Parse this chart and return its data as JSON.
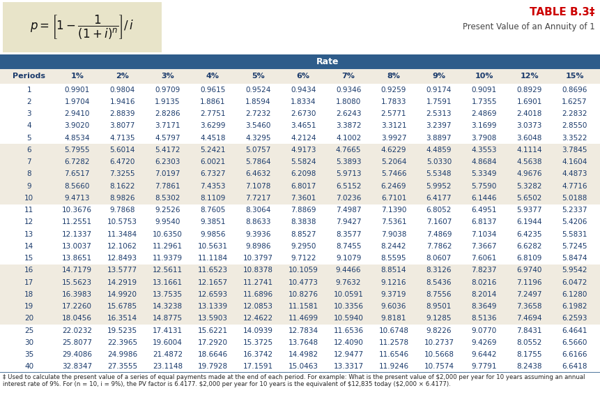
{
  "title": "TABLE B.3‡",
  "subtitle": "Present Value of an Annuity of 1",
  "rate_header": "Rate",
  "col_headers": [
    "Periods",
    "1%",
    "2%",
    "3%",
    "4%",
    "5%",
    "6%",
    "7%",
    "8%",
    "9%",
    "10%",
    "12%",
    "15%"
  ],
  "rows": [
    [
      1,
      0.9901,
      0.9804,
      0.9709,
      0.9615,
      0.9524,
      0.9434,
      0.9346,
      0.9259,
      0.9174,
      0.9091,
      0.8929,
      0.8696
    ],
    [
      2,
      1.9704,
      1.9416,
      1.9135,
      1.8861,
      1.8594,
      1.8334,
      1.808,
      1.7833,
      1.7591,
      1.7355,
      1.6901,
      1.6257
    ],
    [
      3,
      2.941,
      2.8839,
      2.8286,
      2.7751,
      2.7232,
      2.673,
      2.6243,
      2.5771,
      2.5313,
      2.4869,
      2.4018,
      2.2832
    ],
    [
      4,
      3.902,
      3.8077,
      3.7171,
      3.6299,
      3.546,
      3.4651,
      3.3872,
      3.3121,
      3.2397,
      3.1699,
      3.0373,
      2.855
    ],
    [
      5,
      4.8534,
      4.7135,
      4.5797,
      4.4518,
      4.3295,
      4.2124,
      4.1002,
      3.9927,
      3.8897,
      3.7908,
      3.6048,
      3.3522
    ],
    [
      6,
      5.7955,
      5.6014,
      5.4172,
      5.2421,
      5.0757,
      4.9173,
      4.7665,
      4.6229,
      4.4859,
      4.3553,
      4.1114,
      3.7845
    ],
    [
      7,
      6.7282,
      6.472,
      6.2303,
      6.0021,
      5.7864,
      5.5824,
      5.3893,
      5.2064,
      5.033,
      4.8684,
      4.5638,
      4.1604
    ],
    [
      8,
      7.6517,
      7.3255,
      7.0197,
      6.7327,
      6.4632,
      6.2098,
      5.9713,
      5.7466,
      5.5348,
      5.3349,
      4.9676,
      4.4873
    ],
    [
      9,
      8.566,
      8.1622,
      7.7861,
      7.4353,
      7.1078,
      6.8017,
      6.5152,
      6.2469,
      5.9952,
      5.759,
      5.3282,
      4.7716
    ],
    [
      10,
      9.4713,
      8.9826,
      8.5302,
      8.1109,
      7.7217,
      7.3601,
      7.0236,
      6.7101,
      6.4177,
      6.1446,
      5.6502,
      5.0188
    ],
    [
      11,
      10.3676,
      9.7868,
      9.2526,
      8.7605,
      8.3064,
      7.8869,
      7.4987,
      7.139,
      6.8052,
      6.4951,
      5.9377,
      5.2337
    ],
    [
      12,
      11.2551,
      10.5753,
      9.954,
      9.3851,
      8.8633,
      8.3838,
      7.9427,
      7.5361,
      7.1607,
      6.8137,
      6.1944,
      5.4206
    ],
    [
      13,
      12.1337,
      11.3484,
      10.635,
      9.9856,
      9.3936,
      8.8527,
      8.3577,
      7.9038,
      7.4869,
      7.1034,
      6.4235,
      5.5831
    ],
    [
      14,
      13.0037,
      12.1062,
      11.2961,
      10.5631,
      9.8986,
      9.295,
      8.7455,
      8.2442,
      7.7862,
      7.3667,
      6.6282,
      5.7245
    ],
    [
      15,
      13.8651,
      12.8493,
      11.9379,
      11.1184,
      10.3797,
      9.7122,
      9.1079,
      8.5595,
      8.0607,
      7.6061,
      6.8109,
      5.8474
    ],
    [
      16,
      14.7179,
      13.5777,
      12.5611,
      11.6523,
      10.8378,
      10.1059,
      9.4466,
      8.8514,
      8.3126,
      7.8237,
      6.974,
      5.9542
    ],
    [
      17,
      15.5623,
      14.2919,
      13.1661,
      12.1657,
      11.2741,
      10.4773,
      9.7632,
      9.1216,
      8.5436,
      8.0216,
      7.1196,
      6.0472
    ],
    [
      18,
      16.3983,
      14.992,
      13.7535,
      12.6593,
      11.6896,
      10.8276,
      10.0591,
      9.3719,
      8.7556,
      8.2014,
      7.2497,
      6.128
    ],
    [
      19,
      17.226,
      15.6785,
      14.3238,
      13.1339,
      12.0853,
      11.1581,
      10.3356,
      9.6036,
      8.9501,
      8.3649,
      7.3658,
      6.1982
    ],
    [
      20,
      18.0456,
      16.3514,
      14.8775,
      13.5903,
      12.4622,
      11.4699,
      10.594,
      9.8181,
      9.1285,
      8.5136,
      7.4694,
      6.2593
    ],
    [
      25,
      22.0232,
      19.5235,
      17.4131,
      15.6221,
      14.0939,
      12.7834,
      11.6536,
      10.6748,
      9.8226,
      9.077,
      7.8431,
      6.4641
    ],
    [
      30,
      25.8077,
      22.3965,
      19.6004,
      17.292,
      15.3725,
      13.7648,
      12.409,
      11.2578,
      10.2737,
      9.4269,
      8.0552,
      6.566
    ],
    [
      35,
      29.4086,
      24.9986,
      21.4872,
      18.6646,
      16.3742,
      14.4982,
      12.9477,
      11.6546,
      10.5668,
      9.6442,
      8.1755,
      6.6166
    ],
    [
      40,
      32.8347,
      27.3555,
      23.1148,
      19.7928,
      17.1591,
      15.0463,
      13.3317,
      11.9246,
      10.7574,
      9.7791,
      8.2438,
      6.6418
    ]
  ],
  "formula_box_color": "#e8e4c9",
  "header_bar_color": "#2e5c8a",
  "header_text_color": "#ffffff",
  "col_header_bg": "#f0ebe0",
  "col_header_text": "#1a3a6b",
  "row_bg_white": "#ffffff",
  "row_bg_tan": "#f0ebe0",
  "row_text_color": "#1a3a6b",
  "border_color": "#2e5c8a",
  "title_color": "#cc0000",
  "subtitle_color": "#444444",
  "footnote_text": "‡ Used to calculate the present value of a series of equal payments made at the end of each period. For example: What is the present value of $2,000 per year for 10 years assuming an annual interest rate of 9%. For (n = 10, i = 9%), the PV factor is 6.4177. $2,000 per year for 10 years is the equivalent of $12,835 today ($2,000 × 6.4177).",
  "fig_width": 8.62,
  "fig_height": 5.86,
  "dpi": 100
}
